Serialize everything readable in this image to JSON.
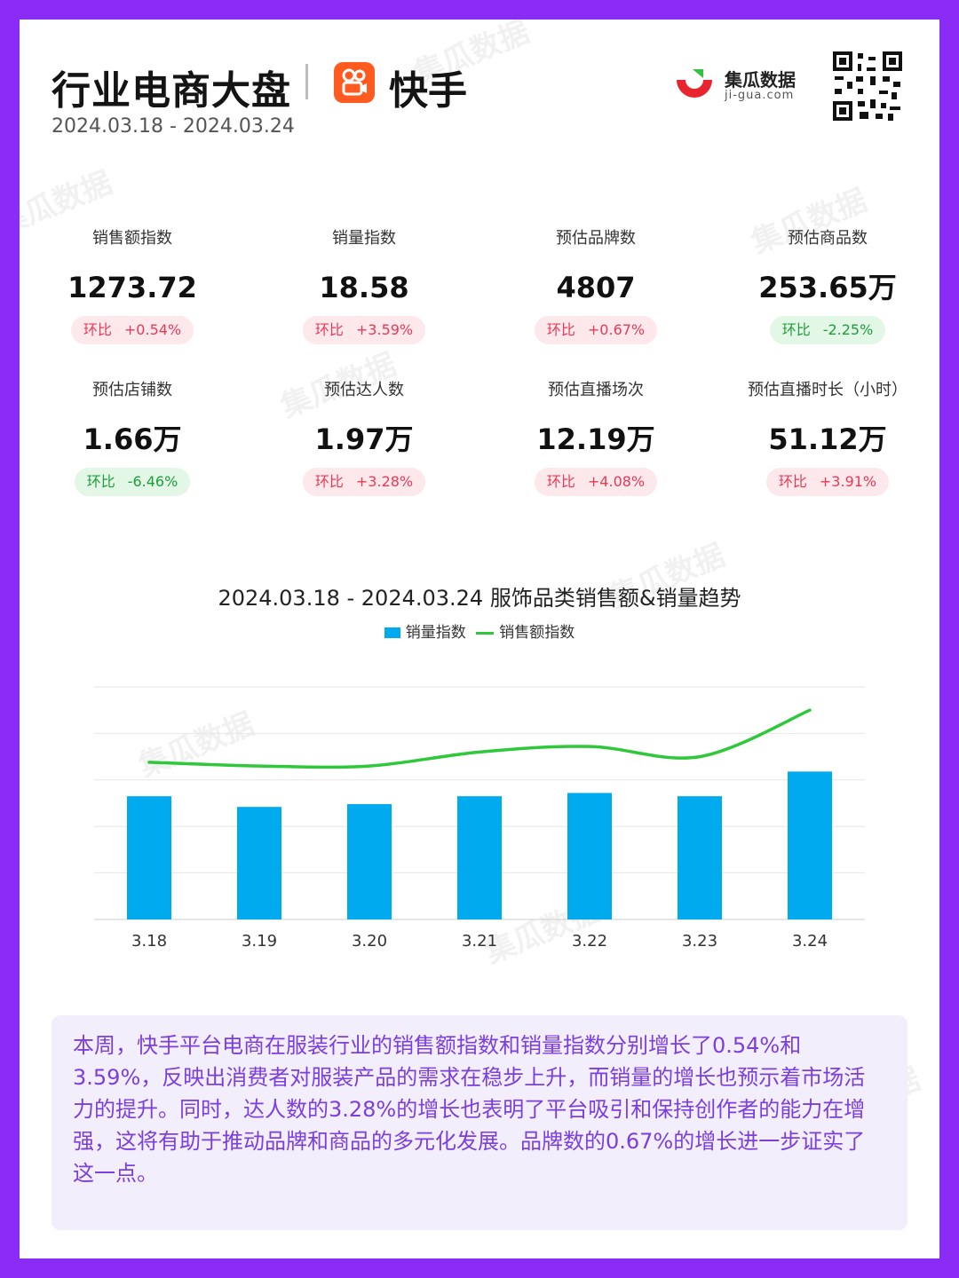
{
  "header": {
    "title": "行业电商大盘",
    "platform": "快手",
    "date_range": "2024.03.18 - 2024.03.24",
    "brand_name": "集瓜数据",
    "brand_domain": "ji-gua.com"
  },
  "metrics": [
    {
      "label": "销售额指数",
      "value": "1273.72",
      "change_label": "环比",
      "change": "+0.54%",
      "trend": "up"
    },
    {
      "label": "销量指数",
      "value": "18.58",
      "change_label": "环比",
      "change": "+3.59%",
      "trend": "up"
    },
    {
      "label": "预估品牌数",
      "value": "4807",
      "change_label": "环比",
      "change": "+0.67%",
      "trend": "up"
    },
    {
      "label": "预估商品数",
      "value": "253.65万",
      "change_label": "环比",
      "change": "-2.25%",
      "trend": "down"
    },
    {
      "label": "预估店铺数",
      "value": "1.66万",
      "change_label": "环比",
      "change": "-6.46%",
      "trend": "down"
    },
    {
      "label": "预估达人数",
      "value": "1.97万",
      "change_label": "环比",
      "change": "+3.28%",
      "trend": "up"
    },
    {
      "label": "预估直播场次",
      "value": "12.19万",
      "change_label": "环比",
      "change": "+4.08%",
      "trend": "up"
    },
    {
      "label": "预估直播时长（小时）",
      "value": "51.12万",
      "change_label": "环比",
      "change": "+3.91%",
      "trend": "up"
    }
  ],
  "chart_data": {
    "type": "bar",
    "title": "2024.03.18 - 2024.03.24 服饰品类销售额&销量趋势",
    "categories": [
      "3.18",
      "3.19",
      "3.20",
      "3.21",
      "3.22",
      "3.23",
      "3.24"
    ],
    "ylim": [
      0,
      5
    ],
    "grid": true,
    "legend_position": "top",
    "series": [
      {
        "name": "销量指数",
        "type": "bar",
        "color": "#00aaee",
        "values": [
          2.65,
          2.42,
          2.48,
          2.65,
          2.72,
          2.65,
          3.18
        ]
      },
      {
        "name": "销售额指数",
        "type": "line",
        "color": "#2ec83a",
        "values": [
          3.38,
          3.3,
          3.3,
          3.6,
          3.72,
          3.5,
          4.5
        ]
      }
    ]
  },
  "summary": "本周，快手平台电商在服装行业的销售额指数和销量指数分别增长了0.54%和3.59%，反映出消费者对服装产品的需求在稳步上升，而销量的增长也预示着市场活力的提升。同时，达人数的3.28%的增长也表明了平台吸引和保持创作者的能力在增强，这将有助于推动品牌和商品的多元化发展。品牌数的0.67%的增长进一步证实了这一点。"
}
